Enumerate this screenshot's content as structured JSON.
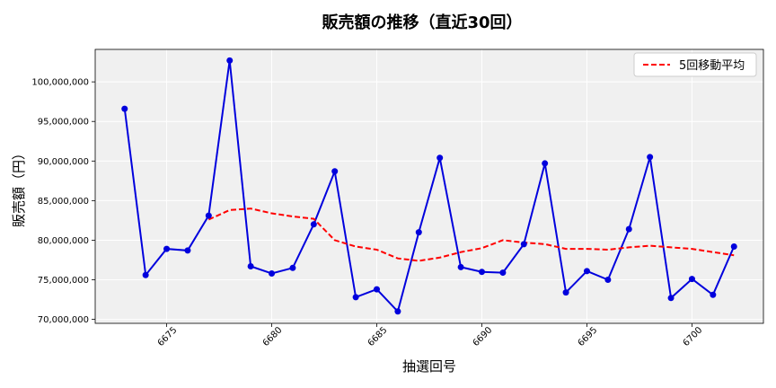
{
  "chart_data": {
    "type": "line",
    "title": "販売額の推移（直近30回）",
    "xlabel": "抽選回号",
    "ylabel": "販売額（円）",
    "x": [
      6673,
      6674,
      6675,
      6676,
      6677,
      6678,
      6679,
      6680,
      6681,
      6682,
      6683,
      6684,
      6685,
      6686,
      6687,
      6688,
      6689,
      6690,
      6691,
      6692,
      6693,
      6694,
      6695,
      6696,
      6697,
      6698,
      6699,
      6700,
      6701,
      6702
    ],
    "xlim": [
      6671.6,
      6703.4
    ],
    "ylim": [
      69500000,
      104100000
    ],
    "xticks": [
      6675,
      6680,
      6685,
      6690,
      6695,
      6700
    ],
    "xtick_labels": [
      "6675",
      "6680",
      "6685",
      "6690",
      "6695",
      "6700"
    ],
    "yticks": [
      70000000,
      75000000,
      80000000,
      85000000,
      90000000,
      95000000,
      100000000
    ],
    "ytick_labels": [
      "70,000,000",
      "75,000,000",
      "80,000,000",
      "85,000,000",
      "90,000,000",
      "95,000,000",
      "100,000,000"
    ],
    "grid": true,
    "legend_position": "top-right",
    "series": [
      {
        "name": "",
        "color": "#0000dd",
        "style": "solid-with-markers",
        "values": [
          96600000,
          75600000,
          78900000,
          78700000,
          83100000,
          102700000,
          76700000,
          75800000,
          76500000,
          82000000,
          88700000,
          72800000,
          73800000,
          71000000,
          81000000,
          90400000,
          76600000,
          76000000,
          75900000,
          79500000,
          89700000,
          73400000,
          76100000,
          75000000,
          81400000,
          90500000,
          72700000,
          75100000,
          73100000,
          79200000
        ]
      },
      {
        "name": "5回移動平均",
        "color": "#ff0000",
        "style": "dashed",
        "values": [
          null,
          null,
          null,
          null,
          82600000,
          83800000,
          84000000,
          83400000,
          83000000,
          82700000,
          80000000,
          79200000,
          78800000,
          77700000,
          77400000,
          77800000,
          78500000,
          79000000,
          80000000,
          79700000,
          79500000,
          78900000,
          78900000,
          78800000,
          79100000,
          79300000,
          79100000,
          78900000,
          78500000,
          78100000
        ]
      }
    ]
  }
}
